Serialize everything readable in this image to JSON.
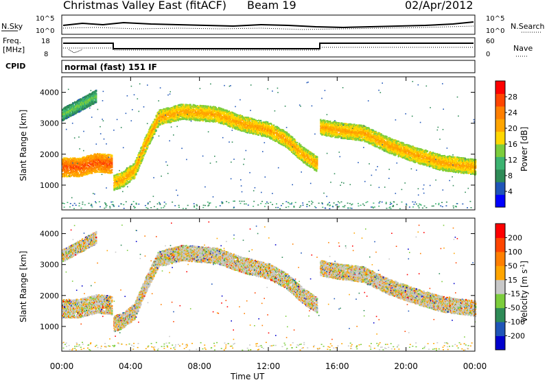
{
  "header": {
    "station": "Christmas Valley East (fitACF)",
    "beam": "Beam 19",
    "date": "02/Apr/2012"
  },
  "sky_panel": {
    "left_label": "N.Sky",
    "right_label": "N.Search",
    "left_ticks": [
      "10^5",
      "10^0"
    ],
    "right_ticks": [
      "10^5",
      "10^0"
    ]
  },
  "freq_panel": {
    "left_label_1": "Freq.",
    "left_label_2": "[MHz]",
    "right_label": "Nave",
    "left_ticks": [
      "18",
      "8"
    ],
    "right_ticks": [
      "60",
      "0"
    ]
  },
  "cpid": {
    "label": "CPID",
    "value": "normal (fast) 151 IF"
  },
  "colors": {
    "power_scale": [
      "#0000ff",
      "#1f55b8",
      "#2e8b57",
      "#3cb371",
      "#7ccd3c",
      "#ffd700",
      "#ffa500",
      "#ff7f00",
      "#ff4500",
      "#ff0000"
    ],
    "velocity_scale": [
      "#0000cd",
      "#1f55b8",
      "#2e8b57",
      "#7ccd3c",
      "#c8c8c8",
      "#ffa500",
      "#ff7f00",
      "#ff4500",
      "#ff0000"
    ]
  },
  "chart_data": [
    {
      "type": "heatmap",
      "panel": "power",
      "ylabel": "Slant Range [km]",
      "yticks": [
        "1000",
        "2000",
        "3000",
        "4000"
      ],
      "ylim": [
        200,
        4500
      ],
      "xlim": [
        0,
        24
      ],
      "colorbar_label": "Power [dB]",
      "colorbar_ticks": [
        "4",
        "8",
        "12",
        "16",
        "20",
        "24",
        "28"
      ],
      "colorbar_range": [
        0,
        32
      ],
      "echo_bands": [
        {
          "x": [
            0,
            1,
            2,
            2.9
          ],
          "y": [
            1600,
            1600,
            1750,
            1700
          ],
          "width": 600,
          "level": 24
        },
        {
          "x": [
            3,
            3.5,
            4.2,
            4.8,
            5.6,
            7,
            9,
            10.5,
            12,
            13,
            14,
            14.8
          ],
          "y": [
            1100,
            1200,
            1500,
            2300,
            3200,
            3400,
            3300,
            3000,
            2800,
            2500,
            2000,
            1700
          ],
          "width": 500,
          "level": 18
        },
        {
          "x": [
            15,
            16,
            17.5,
            19,
            20.5,
            22,
            24
          ],
          "y": [
            2900,
            2800,
            2700,
            2300,
            2000,
            1750,
            1600
          ],
          "width": 500,
          "level": 18
        },
        {
          "x": [
            0,
            1,
            2
          ],
          "y": [
            3300,
            3600,
            3900
          ],
          "width": 400,
          "level": 10
        }
      ]
    },
    {
      "type": "heatmap",
      "panel": "velocity",
      "xlabel": "Time UT",
      "ylabel": "Slant Range [km]",
      "yticks": [
        "1000",
        "2000",
        "3000",
        "4000"
      ],
      "ylim": [
        200,
        4500
      ],
      "xlim": [
        0,
        24
      ],
      "xticks": [
        "00:00",
        "04:00",
        "08:00",
        "12:00",
        "16:00",
        "20:00",
        "00:00"
      ],
      "colorbar_label": "Velocity [m s^-1]",
      "colorbar_ticks": [
        "200",
        "100",
        "50",
        "15",
        "-15",
        "-50",
        "-100",
        "-200"
      ],
      "colorbar_range": [
        -250,
        250
      ]
    }
  ]
}
